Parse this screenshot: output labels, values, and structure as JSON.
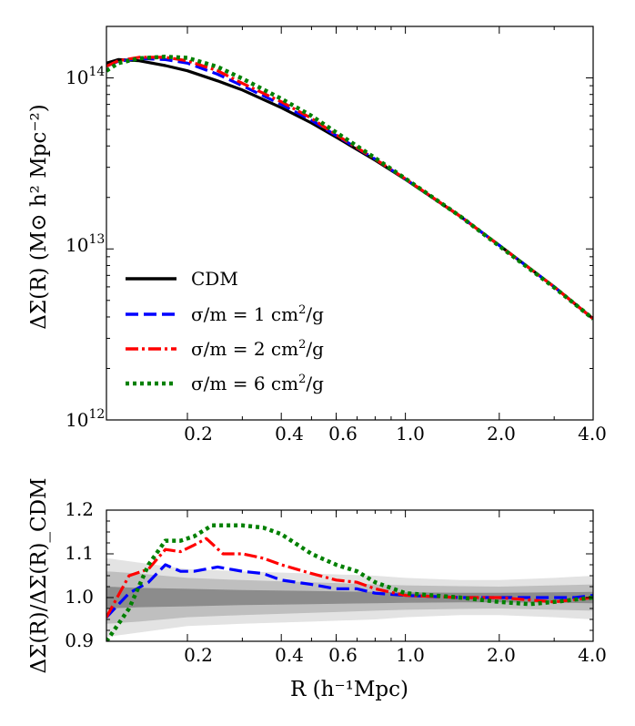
{
  "chart_data": [
    {
      "type": "line",
      "title": "",
      "xscale": "log",
      "yscale": "log",
      "xlim": [
        0.11,
        4.0
      ],
      "ylim": [
        1000000000000.0,
        200000000000000.0
      ],
      "ylabel": "ΔΣ(R) (M⊙ h² Mpc⁻²)",
      "xlabel": "",
      "x_tick_labels": [
        "0.2",
        "0.4",
        "0.6",
        "1.0",
        "2.0",
        "4.0"
      ],
      "x_ticks": [
        0.2,
        0.4,
        0.6,
        1.0,
        2.0,
        4.0
      ],
      "y_tick_labels": [
        {
          "base": "10",
          "exp": "12",
          "value": 1000000000000.0
        },
        {
          "base": "10",
          "exp": "13",
          "value": 10000000000000.0
        },
        {
          "base": "10",
          "exp": "14",
          "value": 100000000000000.0
        }
      ],
      "legend_position": "lower-left",
      "series": [
        {
          "name": "CDM",
          "label": "CDM",
          "color": "#000000",
          "style": "solid",
          "x": [
            0.11,
            0.12,
            0.14,
            0.17,
            0.2,
            0.25,
            0.3,
            0.4,
            0.5,
            0.6,
            0.8,
            1.0,
            1.5,
            2.0,
            3.0,
            4.0
          ],
          "y": [
            122000000000000.0,
            128000000000000.0,
            126000000000000.0,
            118000000000000.0,
            110000000000000.0,
            96000000000000.0,
            85000000000000.0,
            67000000000000.0,
            54500000000000.0,
            45000000000000.0,
            33000000000000.0,
            25500000000000.0,
            15500000000000.0,
            10500000000000.0,
            6000000000000.0,
            3900000000000.0
          ]
        },
        {
          "name": "sigma/m = 1 cm2/g",
          "label_prefix": "σ/m = 1 cm",
          "label_exp": "2",
          "label_suffix": "/g",
          "color": "#0000ff",
          "style": "dashed",
          "x": [
            0.11,
            0.12,
            0.14,
            0.17,
            0.2,
            0.25,
            0.3,
            0.4,
            0.5,
            0.6,
            0.8,
            1.0,
            1.5,
            2.0,
            3.0,
            4.0
          ],
          "y": [
            117000000000000.0,
            125000000000000.0,
            130000000000000.0,
            128000000000000.0,
            122000000000000.0,
            105000000000000.0,
            90000000000000.0,
            70000000000000.0,
            56500000000000.0,
            46000000000000.0,
            33500000000000.0,
            25600000000000.0,
            15500000000000.0,
            10500000000000.0,
            6000000000000.0,
            3900000000000.0
          ]
        },
        {
          "name": "sigma/m = 2 cm2/g",
          "label_prefix": "σ/m = 2 cm",
          "label_exp": "2",
          "label_suffix": "/g",
          "color": "#ff0000",
          "style": "dashdot",
          "x": [
            0.11,
            0.12,
            0.14,
            0.17,
            0.2,
            0.25,
            0.3,
            0.4,
            0.5,
            0.6,
            0.8,
            1.0,
            1.5,
            2.0,
            3.0,
            4.0
          ],
          "y": [
            117000000000000.0,
            126000000000000.0,
            132000000000000.0,
            132000000000000.0,
            126000000000000.0,
            110000000000000.0,
            93000000000000.0,
            72500000000000.0,
            58000000000000.0,
            46500000000000.0,
            33500000000000.0,
            25700000000000.0,
            15500000000000.0,
            10500000000000.0,
            6000000000000.0,
            3900000000000.0
          ]
        },
        {
          "name": "sigma/m = 6 cm2/g",
          "label_prefix": "σ/m = 6 cm",
          "label_exp": "2",
          "label_suffix": "/g",
          "color": "#008000",
          "style": "dotted",
          "x": [
            0.11,
            0.12,
            0.14,
            0.17,
            0.2,
            0.25,
            0.3,
            0.4,
            0.5,
            0.6,
            0.8,
            1.0,
            1.5,
            2.0,
            3.0,
            4.0
          ],
          "y": [
            110000000000000.0,
            122000000000000.0,
            130000000000000.0,
            133000000000000.0,
            131000000000000.0,
            116000000000000.0,
            99000000000000.0,
            75500000000000.0,
            60000000000000.0,
            48000000000000.0,
            34000000000000.0,
            25800000000000.0,
            15500000000000.0,
            10400000000000.0,
            5950000000000.0,
            3900000000000.0
          ]
        }
      ]
    },
    {
      "type": "line",
      "xscale": "log",
      "yscale": "linear",
      "xlim": [
        0.11,
        4.0
      ],
      "ylim": [
        0.9,
        1.2
      ],
      "xlabel": "R (h⁻¹Mpc)",
      "ylabel": "ΔΣ(R)/ΔΣ(R)_CDM",
      "x_tick_labels": [
        "0.2",
        "0.4",
        "0.6",
        "1.0",
        "2.0",
        "4.0"
      ],
      "x_ticks": [
        0.2,
        0.4,
        0.6,
        1.0,
        2.0,
        4.0
      ],
      "y_tick_labels": [
        "0.9",
        "1.0",
        "1.1",
        "1.2"
      ],
      "y_ticks": [
        0.9,
        1.0,
        1.1,
        1.2
      ],
      "bands": [
        {
          "name": "outer",
          "color": "#e3e3e3",
          "x": [
            0.11,
            0.14,
            0.2,
            0.3,
            0.5,
            0.8,
            1.0,
            1.5,
            2.0,
            3.0,
            4.0
          ],
          "half_width": [
            0.09,
            0.08,
            0.065,
            0.06,
            0.055,
            0.05,
            0.045,
            0.04,
            0.04,
            0.045,
            0.05
          ]
        },
        {
          "name": "middle",
          "color": "#bfbfbf",
          "x": [
            0.11,
            0.14,
            0.2,
            0.3,
            0.5,
            0.8,
            1.0,
            1.5,
            2.0,
            3.0,
            4.0
          ],
          "half_width": [
            0.06,
            0.055,
            0.045,
            0.04,
            0.035,
            0.03,
            0.028,
            0.026,
            0.025,
            0.028,
            0.03
          ]
        },
        {
          "name": "inner",
          "color": "#8c8c8c",
          "x": [
            0.11,
            0.14,
            0.2,
            0.3,
            0.5,
            0.8,
            1.0,
            1.5,
            2.0,
            3.0,
            4.0
          ],
          "half_width": [
            0.025,
            0.022,
            0.02,
            0.017,
            0.015,
            0.013,
            0.012,
            0.011,
            0.011,
            0.012,
            0.013
          ]
        }
      ],
      "series": [
        {
          "name": "sigma/m = 1 cm2/g",
          "color": "#0000ff",
          "style": "dashed",
          "x": [
            0.11,
            0.13,
            0.15,
            0.17,
            0.19,
            0.21,
            0.25,
            0.3,
            0.35,
            0.4,
            0.5,
            0.6,
            0.7,
            0.8,
            1.0,
            1.5,
            2.0,
            3.0,
            3.5,
            4.0
          ],
          "y": [
            0.955,
            1.01,
            1.035,
            1.075,
            1.06,
            1.06,
            1.07,
            1.06,
            1.055,
            1.04,
            1.03,
            1.02,
            1.02,
            1.01,
            1.005,
            1.0,
            1.0,
            1.0,
            1.0,
            1.005
          ]
        },
        {
          "name": "sigma/m = 2 cm2/g",
          "color": "#ff0000",
          "style": "dashdot",
          "x": [
            0.11,
            0.13,
            0.15,
            0.17,
            0.19,
            0.21,
            0.23,
            0.26,
            0.3,
            0.35,
            0.4,
            0.5,
            0.6,
            0.7,
            0.8,
            1.0,
            1.5,
            2.0,
            3.0,
            4.0
          ],
          "y": [
            0.955,
            1.05,
            1.065,
            1.11,
            1.105,
            1.12,
            1.135,
            1.1,
            1.1,
            1.09,
            1.075,
            1.055,
            1.04,
            1.035,
            1.02,
            1.005,
            1.0,
            1.0,
            0.99,
            1.0
          ]
        },
        {
          "name": "sigma/m = 6 cm2/g",
          "color": "#008000",
          "style": "dotted",
          "x": [
            0.11,
            0.13,
            0.15,
            0.17,
            0.19,
            0.21,
            0.24,
            0.3,
            0.35,
            0.4,
            0.5,
            0.6,
            0.7,
            0.8,
            1.0,
            1.5,
            2.0,
            2.5,
            3.0,
            4.0
          ],
          "y": [
            0.9,
            0.975,
            1.075,
            1.13,
            1.13,
            1.14,
            1.165,
            1.165,
            1.16,
            1.145,
            1.1,
            1.075,
            1.06,
            1.035,
            1.01,
            1.0,
            0.99,
            0.985,
            0.99,
            1.0
          ]
        }
      ]
    }
  ]
}
